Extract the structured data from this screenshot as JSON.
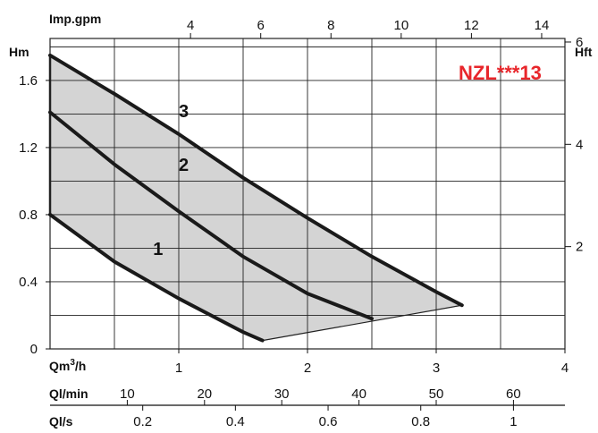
{
  "chart_data": {
    "type": "line",
    "model_label": "NZL***13",
    "colors": {
      "model_label": "#e8262b",
      "envelope_fill": "#d4d4d4",
      "curve": "#1a1a1a",
      "grid": "#222222"
    },
    "grid": true,
    "axes": {
      "left": {
        "label": "Hm",
        "unit_label": "Hm",
        "ticks": [
          "0",
          "0.4",
          "0.8",
          "1.2",
          "1.6"
        ],
        "tick_values": [
          0,
          0.4,
          0.8,
          1.2,
          1.6
        ],
        "range": [
          0,
          1.85
        ]
      },
      "right": {
        "label": "Hft",
        "ticks": [
          "2",
          "4",
          "6"
        ],
        "tick_values": [
          2,
          4,
          6
        ]
      },
      "top": {
        "label": "Imp.gpm",
        "ticks": [
          "4",
          "6",
          "8",
          "10",
          "12",
          "14"
        ],
        "tick_values": [
          4,
          6,
          8,
          10,
          12,
          14
        ]
      },
      "bottom": {
        "label": "Qm³/h",
        "ticks": [
          "1",
          "2",
          "3",
          "4"
        ],
        "tick_values": [
          1,
          2,
          3,
          4
        ],
        "range": [
          0,
          4
        ]
      },
      "bottom2": {
        "label": "Ql/min",
        "ticks": [
          "10",
          "20",
          "30",
          "40",
          "50",
          "60"
        ],
        "tick_values": [
          10,
          20,
          30,
          40,
          50,
          60
        ]
      },
      "bottom3": {
        "label": "Ql/s",
        "ticks": [
          "0.2",
          "0.4",
          "0.6",
          "0.8",
          "1"
        ],
        "tick_values": [
          0.2,
          0.4,
          0.6,
          0.8,
          1
        ]
      }
    },
    "series": [
      {
        "name": "1",
        "x": [
          0,
          0.5,
          1.0,
          1.5,
          1.65
        ],
        "y": [
          0.8,
          0.52,
          0.3,
          0.1,
          0.05
        ]
      },
      {
        "name": "2",
        "x": [
          0,
          0.5,
          1.0,
          1.5,
          2.0,
          2.5
        ],
        "y": [
          1.41,
          1.1,
          0.82,
          0.55,
          0.33,
          0.18
        ]
      },
      {
        "name": "3",
        "x": [
          0,
          0.5,
          1.0,
          1.5,
          2.0,
          2.5,
          3.0,
          3.2
        ],
        "y": [
          1.75,
          1.52,
          1.28,
          1.02,
          0.78,
          0.55,
          0.34,
          0.26
        ]
      }
    ],
    "series_label_positions": [
      {
        "name": "1",
        "x": 0.8,
        "y": 0.56
      },
      {
        "name": "2",
        "x": 1.0,
        "y": 1.06
      },
      {
        "name": "3",
        "x": 1.0,
        "y": 1.38
      }
    ]
  }
}
